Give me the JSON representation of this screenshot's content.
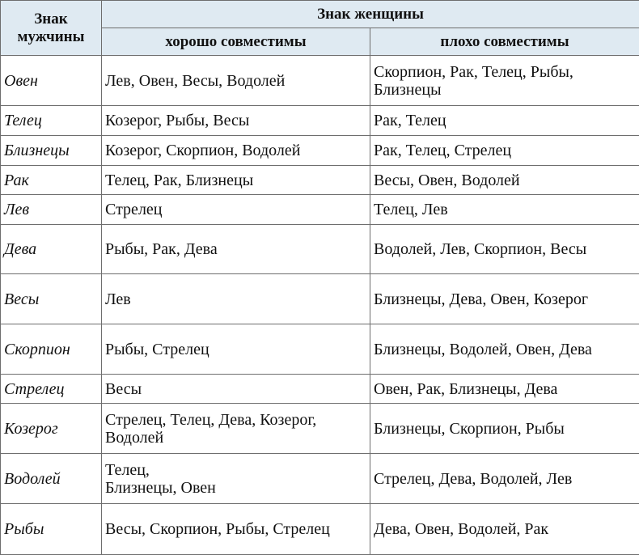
{
  "header": {
    "man_sign": "Знак мужчины",
    "woman_sign": "Знак женщины",
    "good": "хорошо совместимы",
    "bad": "плохо совместимы"
  },
  "rows": [
    {
      "sign": "Овен",
      "good": "Лев, Овен, Весы, Водолей",
      "bad": "Скорпион, Рак, Телец, Рыбы, Близнецы"
    },
    {
      "sign": "Телец",
      "good": "Козерог, Рыбы, Весы",
      "bad": "Рак, Телец"
    },
    {
      "sign": "Близнецы",
      "good": "Козерог, Скорпион, Водолей",
      "bad": "Рак, Телец, Стрелец"
    },
    {
      "sign": "Рак",
      "good": "Телец, Рак, Близнецы",
      "bad": "Весы, Овен, Водолей"
    },
    {
      "sign": "Лев",
      "good": "Стрелец",
      "bad": "Телец, Лев"
    },
    {
      "sign": "Дева",
      "good": "Рыбы, Рак, Дева",
      "bad": "Водолей, Лев, Скорпион, Весы"
    },
    {
      "sign": "Весы",
      "good": "Лев",
      "bad": "Близнецы, Дева, Овен, Козерог"
    },
    {
      "sign": "Скорпион",
      "good": "Рыбы, Стрелец",
      "bad": "Близнецы, Водолей, Овен, Дева"
    },
    {
      "sign": "Стрелец",
      "good": "Весы",
      "bad": "Овен, Рак, Близнецы, Дева"
    },
    {
      "sign": "Козерог",
      "good": "Стрелец, Телец, Дева, Козерог, Водолей",
      "bad": "Близнецы, Скорпион, Рыбы"
    },
    {
      "sign": "Водолей",
      "good": "Телец,\nБлизнецы, Овен",
      "bad": "Стрелец, Дева, Водолей, Лев"
    },
    {
      "sign": "Рыбы",
      "good": "Весы, Скорпион, Рыбы, Стрелец",
      "bad": "Дева, Овен, Водолей, Рак"
    }
  ]
}
